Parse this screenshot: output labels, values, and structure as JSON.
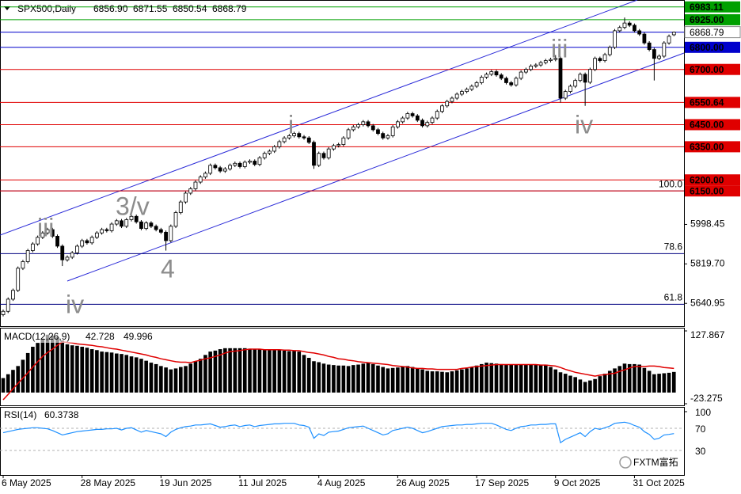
{
  "chart_data": [
    {
      "type": "candlestick",
      "title": "SPX500,Daily",
      "last_bar_labels": [
        "6856.90",
        "6871.55",
        "6850.54",
        "6868.79"
      ],
      "up_color": "#ffffff",
      "down_color": "#000000",
      "channel_color": "#2a2ad8",
      "categories": [
        "6 May 2025",
        null,
        null,
        null,
        null,
        null,
        null,
        null,
        null,
        null,
        null,
        null,
        null,
        null,
        null,
        null,
        "28 May 2025",
        null,
        null,
        null,
        null,
        null,
        null,
        null,
        null,
        null,
        null,
        null,
        null,
        null,
        null,
        null,
        "19 Jun 2025",
        null,
        null,
        null,
        null,
        null,
        null,
        null,
        null,
        null,
        null,
        null,
        null,
        null,
        null,
        null,
        "11 Jul 2025",
        null,
        null,
        null,
        null,
        null,
        null,
        null,
        null,
        null,
        null,
        null,
        null,
        null,
        null,
        null,
        "4 Aug 2025",
        null,
        null,
        null,
        null,
        null,
        null,
        null,
        null,
        null,
        null,
        null,
        null,
        null,
        null,
        null,
        "26 Aug 2025",
        null,
        null,
        null,
        null,
        null,
        null,
        null,
        null,
        null,
        null,
        null,
        null,
        null,
        null,
        null,
        "17 Sep 2025",
        null,
        null,
        null,
        null,
        null,
        null,
        null,
        null,
        null,
        null,
        null,
        null,
        null,
        null,
        null,
        "9 Oct 2025",
        null,
        null,
        null,
        null,
        null,
        null,
        null,
        null,
        null,
        null,
        null,
        null,
        null,
        null,
        null,
        "31 Oct 2025",
        null,
        null,
        null,
        null,
        null,
        null,
        null,
        null
      ],
      "open": [
        5590,
        5605,
        5660,
        5700,
        5800,
        5830,
        5880,
        5910,
        5940,
        5960,
        5975,
        5945,
        5900,
        5838,
        5850,
        5870,
        5900,
        5925,
        5915,
        5940,
        5960,
        5975,
        5970,
        6000,
        6015,
        5990,
        6020,
        6035,
        6010,
        5980,
        6005,
        5990,
        5975,
        5963,
        5925,
        5990,
        6052,
        6100,
        6140,
        6160,
        6190,
        6213,
        6230,
        6266,
        6255,
        6240,
        6250,
        6266,
        6275,
        6260,
        6280,
        6285,
        6270,
        6300,
        6320,
        6330,
        6350,
        6373,
        6390,
        6400,
        6410,
        6395,
        6390,
        6370,
        6266,
        6320,
        6300,
        6340,
        6355,
        6360,
        6390,
        6427,
        6440,
        6450,
        6463,
        6445,
        6427,
        6410,
        6390,
        6400,
        6440,
        6463,
        6480,
        6500,
        6490,
        6470,
        6445,
        6460,
        6480,
        6510,
        6535,
        6555,
        6570,
        6588,
        6600,
        6610,
        6624,
        6640,
        6665,
        6678,
        6690,
        6675,
        6660,
        6640,
        6630,
        6660,
        6688,
        6700,
        6715,
        6720,
        6731,
        6740,
        6745,
        6750,
        6570,
        6600,
        6624,
        6650,
        6678,
        6642,
        6700,
        6750,
        6740,
        6767,
        6800,
        6875,
        6890,
        6910,
        6900,
        6875,
        6860,
        6820,
        6790,
        6750,
        6760,
        6820,
        6856.9
      ],
      "high": [
        5613,
        5668,
        5708,
        5808,
        5838,
        5888,
        5918,
        5948,
        5968,
        5983,
        5983,
        5953,
        5908,
        5858,
        5878,
        5908,
        5933,
        5933,
        5948,
        5968,
        5983,
        5983,
        6008,
        6023,
        6023,
        6028,
        6043,
        6043,
        6018,
        6013,
        6013,
        5998,
        5983,
        5971,
        5998,
        6060,
        6108,
        6148,
        6168,
        6198,
        6221,
        6238,
        6274,
        6274,
        6263,
        6258,
        6274,
        6283,
        6283,
        6288,
        6293,
        6293,
        6308,
        6328,
        6338,
        6358,
        6381,
        6398,
        6408,
        6418,
        6418,
        6403,
        6398,
        6378,
        6328,
        6328,
        6348,
        6363,
        6368,
        6398,
        6435,
        6448,
        6458,
        6471,
        6471,
        6453,
        6435,
        6418,
        6408,
        6448,
        6471,
        6488,
        6508,
        6508,
        6498,
        6478,
        6468,
        6488,
        6518,
        6543,
        6563,
        6578,
        6596,
        6608,
        6618,
        6632,
        6648,
        6673,
        6686,
        6698,
        6698,
        6683,
        6668,
        6648,
        6668,
        6696,
        6708,
        6723,
        6728,
        6739,
        6748,
        6753,
        6765,
        6758,
        6608,
        6632,
        6658,
        6686,
        6686,
        6708,
        6758,
        6758,
        6775,
        6808,
        6883,
        6898,
        6935,
        6918,
        6908,
        6883,
        6868,
        6828,
        6798,
        6768,
        6828,
        6858,
        6871.55
      ],
      "low": [
        5582,
        5597,
        5652,
        5692,
        5792,
        5822,
        5872,
        5902,
        5932,
        5952,
        5937,
        5892,
        5810,
        5830,
        5842,
        5862,
        5892,
        5907,
        5907,
        5932,
        5952,
        5962,
        5962,
        5992,
        5982,
        5982,
        6012,
        6002,
        5972,
        5972,
        5982,
        5967,
        5955,
        5880,
        5917,
        5982,
        6044,
        6092,
        6132,
        6152,
        6182,
        6205,
        6222,
        6247,
        6232,
        6232,
        6242,
        6258,
        6252,
        6252,
        6272,
        6262,
        6262,
        6292,
        6312,
        6322,
        6342,
        6365,
        6382,
        6392,
        6387,
        6382,
        6362,
        6250,
        6258,
        6292,
        6292,
        6332,
        6347,
        6352,
        6382,
        6419,
        6432,
        6442,
        6437,
        6419,
        6402,
        6382,
        6382,
        6392,
        6432,
        6455,
        6472,
        6482,
        6462,
        6437,
        6437,
        6452,
        6472,
        6502,
        6527,
        6547,
        6562,
        6580,
        6592,
        6602,
        6616,
        6632,
        6657,
        6670,
        6667,
        6652,
        6632,
        6622,
        6622,
        6652,
        6680,
        6692,
        6707,
        6712,
        6723,
        6732,
        6737,
        6550,
        6562,
        6592,
        6616,
        6642,
        6535,
        6634,
        6692,
        6732,
        6732,
        6759,
        6792,
        6867,
        6882,
        6892,
        6867,
        6852,
        6812,
        6782,
        6650,
        6742,
        6752,
        6812,
        6850.54
      ],
      "close": [
        5605,
        5660,
        5700,
        5800,
        5830,
        5880,
        5910,
        5940,
        5960,
        5975,
        5945,
        5900,
        5838,
        5850,
        5870,
        5900,
        5925,
        5915,
        5940,
        5960,
        5975,
        5970,
        6000,
        6015,
        5990,
        6020,
        6035,
        6010,
        5980,
        6005,
        5990,
        5975,
        5963,
        5925,
        5990,
        6052,
        6100,
        6140,
        6160,
        6190,
        6213,
        6230,
        6266,
        6255,
        6240,
        6250,
        6266,
        6275,
        6260,
        6280,
        6285,
        6270,
        6300,
        6320,
        6330,
        6350,
        6373,
        6390,
        6400,
        6410,
        6395,
        6390,
        6370,
        6266,
        6320,
        6300,
        6340,
        6355,
        6360,
        6390,
        6427,
        6440,
        6450,
        6463,
        6445,
        6427,
        6410,
        6390,
        6400,
        6440,
        6463,
        6480,
        6500,
        6490,
        6470,
        6445,
        6460,
        6480,
        6510,
        6535,
        6555,
        6570,
        6588,
        6600,
        6610,
        6624,
        6640,
        6665,
        6678,
        6690,
        6675,
        6660,
        6640,
        6630,
        6660,
        6688,
        6700,
        6715,
        6720,
        6731,
        6740,
        6745,
        6750,
        6570,
        6600,
        6624,
        6650,
        6678,
        6642,
        6700,
        6750,
        6740,
        6767,
        6800,
        6875,
        6890,
        6910,
        6900,
        6875,
        6860,
        6820,
        6790,
        6750,
        6760,
        6820,
        6850,
        6868.79
      ],
      "ylim": [
        5545,
        7000
      ],
      "yticks": [
        5640.95,
        {
          "value": 5819.7,
          "label": "5819.70"
        },
        5998.45
      ],
      "levels": [
        {
          "value": 6983.11,
          "color": "#00a000"
        },
        {
          "value": 6925,
          "label": "6925.00",
          "color": "#00a000"
        },
        {
          "value": 6800,
          "label": "6800.00",
          "color": "#0000cc"
        },
        {
          "value": 6700,
          "label": "6700.00",
          "color": "#e00000"
        },
        {
          "value": 6550.64,
          "color": "#e00000"
        },
        {
          "value": 6450,
          "label": "6450.00",
          "color": "#e00000"
        },
        {
          "value": 6350,
          "label": "6350.00",
          "color": "#e00000"
        },
        {
          "value": 6200,
          "label": "6200.00",
          "color": "#e00000"
        },
        {
          "value": 6150,
          "label": "6150.00",
          "color": "#e00000"
        }
      ],
      "fib_levels": [
        {
          "label": "100.0",
          "price": 6150
        },
        {
          "label": "78.6",
          "price": 5866
        },
        {
          "label": "61.8",
          "price": 5637
        }
      ],
      "fib_color": "#000080",
      "wave_labels": [
        "iii",
        "iv",
        "3/v",
        "4",
        "i",
        "iii",
        "iv"
      ],
      "watermark": "FXTM富拓"
    },
    {
      "type": "macd",
      "title": "MACD(12,26,9)",
      "ylim": [
        -23.275,
        127.867
      ],
      "yticks": [
        127.867,
        -23.275
      ],
      "histogram_color": "#000000",
      "signal_color": "#e00000",
      "histogram": [
        30,
        38,
        47,
        55,
        68,
        82,
        95,
        103,
        112,
        120,
        118,
        115,
        108,
        100,
        98,
        97,
        95,
        93,
        90,
        88,
        85,
        84,
        83,
        81,
        80,
        78,
        75,
        73,
        70,
        66,
        62,
        59,
        55,
        52,
        48,
        50,
        53,
        55,
        60,
        65,
        70,
        78,
        85,
        87,
        90,
        92,
        92,
        92,
        92,
        92,
        91,
        90,
        90,
        89,
        89,
        88,
        88,
        87,
        86,
        86,
        85,
        78,
        72,
        65,
        63,
        60,
        58,
        57,
        56,
        56,
        55,
        57,
        58,
        60,
        62,
        59,
        56,
        53,
        50,
        51,
        52,
        54,
        55,
        53,
        50,
        48,
        45,
        44,
        44,
        43,
        42,
        44,
        46,
        48,
        50,
        53,
        56,
        59,
        62,
        61,
        60,
        59,
        58,
        58,
        58,
        58,
        58,
        58,
        58,
        58,
        58,
        53,
        48,
        42,
        39,
        35,
        32,
        27,
        22,
        25,
        28,
        34,
        39,
        45,
        50,
        55,
        60,
        59,
        59,
        58,
        51,
        45,
        38,
        39,
        40,
        41,
        42.728
      ],
      "signal": [
        -15,
        -4,
        8,
        19,
        30,
        41,
        53,
        64,
        75,
        83,
        90,
        98,
        105,
        104,
        103,
        101,
        100,
        99,
        98,
        96,
        95,
        93,
        91,
        90,
        88,
        86,
        84,
        82,
        80,
        78,
        75,
        73,
        70,
        68,
        66,
        64,
        63,
        63,
        62,
        65,
        67,
        70,
        72,
        75,
        78,
        82,
        85,
        86,
        87,
        89,
        90,
        90,
        90,
        89,
        89,
        89,
        89,
        88,
        88,
        87,
        87,
        85,
        83,
        82,
        80,
        78,
        75,
        73,
        70,
        69,
        67,
        66,
        64,
        63,
        62,
        61,
        60,
        59,
        58,
        56,
        55,
        54,
        53,
        51,
        50,
        50,
        49,
        49,
        48,
        48,
        48,
        48,
        48,
        50,
        51,
        53,
        54,
        55,
        56,
        57,
        58,
        58,
        58,
        58,
        58,
        58,
        58,
        58,
        58,
        57,
        57,
        56,
        55,
        52,
        48,
        45,
        42,
        40,
        38,
        36,
        34,
        36,
        37,
        39,
        40,
        44,
        47,
        51,
        54,
        54,
        54,
        55,
        55,
        54,
        52,
        51,
        49.996
      ]
    },
    {
      "type": "line",
      "title": "RSI(14)",
      "color": "#1e90ff",
      "ylim": [
        0,
        100
      ],
      "yticks": [
        100,
        70,
        30
      ],
      "values": [
        62,
        64,
        66,
        68,
        69,
        70,
        71,
        71,
        70,
        69,
        66,
        62,
        58,
        60,
        62,
        64,
        65,
        66,
        67,
        68,
        68,
        69,
        69,
        70,
        67,
        70,
        71,
        67,
        63,
        66,
        64,
        62,
        60,
        55,
        63,
        68,
        71,
        73,
        74,
        76,
        76,
        77,
        78,
        75,
        72,
        73,
        75,
        76,
        73,
        75,
        76,
        73,
        75,
        76,
        77,
        78,
        78,
        79,
        79,
        79,
        76,
        75,
        72,
        52,
        60,
        57,
        63,
        64,
        65,
        68,
        71,
        72,
        73,
        74,
        70,
        66,
        62,
        58,
        60,
        66,
        68,
        70,
        72,
        70,
        66,
        62,
        64,
        67,
        70,
        73,
        74,
        75,
        76,
        76,
        77,
        77,
        78,
        79,
        79,
        79,
        76,
        72,
        68,
        66,
        70,
        73,
        74,
        76,
        76,
        77,
        77,
        78,
        78,
        44,
        50,
        54,
        58,
        62,
        55,
        64,
        70,
        68,
        71,
        74,
        79,
        80,
        81,
        79,
        75,
        72,
        64,
        59,
        50,
        52,
        58,
        59,
        60.3738
      ]
    }
  ]
}
